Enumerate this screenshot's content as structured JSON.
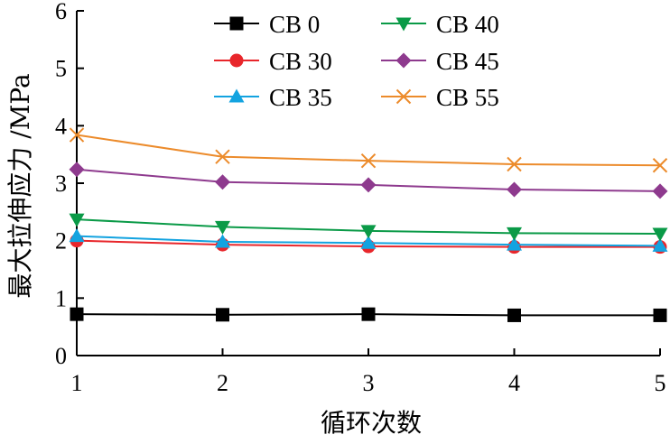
{
  "chart_data": {
    "type": "line",
    "title": "",
    "xlabel": "循环次数",
    "ylabel": "最大拉伸应力 /MPa",
    "x": [
      1,
      2,
      3,
      4,
      5
    ],
    "xlim": [
      1,
      5
    ],
    "ylim": [
      0,
      6
    ],
    "xticks": [
      "1",
      "2",
      "3",
      "4",
      "5"
    ],
    "yticks": [
      "0",
      "1",
      "2",
      "3",
      "4",
      "5",
      "6"
    ],
    "grid": false,
    "legend_position": "top-center",
    "series": [
      {
        "name": "CB 0",
        "color": "#000000",
        "marker": "square",
        "values": [
          0.72,
          0.71,
          0.72,
          0.7,
          0.7
        ]
      },
      {
        "name": "CB 30",
        "color": "#e8262b",
        "marker": "circle",
        "values": [
          2.0,
          1.93,
          1.9,
          1.89,
          1.89
        ]
      },
      {
        "name": "CB 35",
        "color": "#13a3e0",
        "marker": "triangle-up",
        "values": [
          2.08,
          1.98,
          1.96,
          1.93,
          1.91
        ]
      },
      {
        "name": "CB 40",
        "color": "#0a9a47",
        "marker": "triangle-down",
        "values": [
          2.37,
          2.24,
          2.17,
          2.13,
          2.12
        ]
      },
      {
        "name": "CB 45",
        "color": "#8e3a8e",
        "marker": "diamond",
        "values": [
          3.24,
          3.02,
          2.97,
          2.89,
          2.86
        ]
      },
      {
        "name": "CB 55",
        "color": "#ec8b2b",
        "marker": "x",
        "values": [
          3.84,
          3.46,
          3.39,
          3.33,
          3.31
        ]
      }
    ]
  }
}
